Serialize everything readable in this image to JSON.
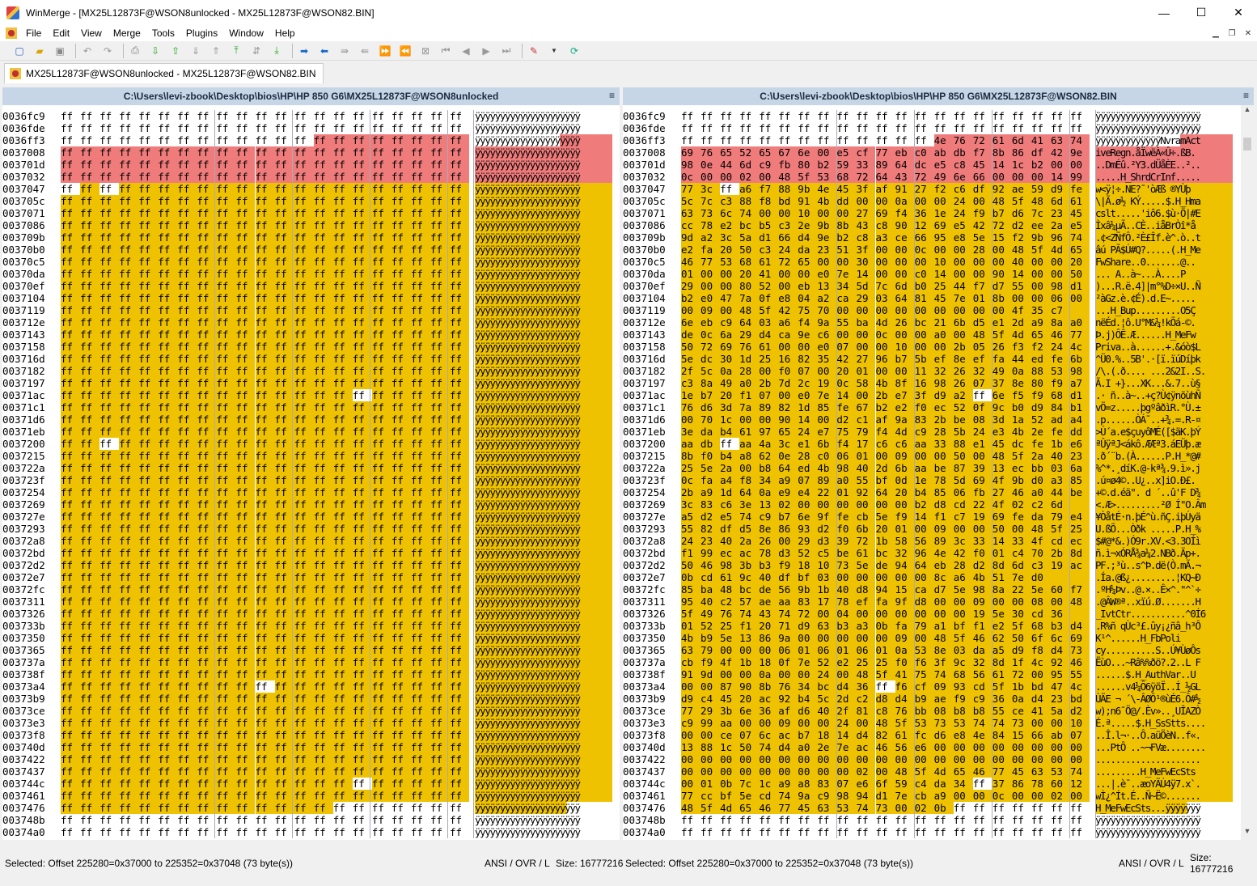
{
  "window": {
    "title": "WinMerge - [MX25L12873F@WSON8unlocked - MX25L12873F@WSON82.BIN]",
    "minimize": "—",
    "maximize": "☐",
    "close": "✕"
  },
  "menu": [
    "File",
    "Edit",
    "View",
    "Merge",
    "Tools",
    "Plugins",
    "Window",
    "Help"
  ],
  "tab": {
    "label": "MX25L12873F@WSON8unlocked - MX25L12873F@WSON82.BIN"
  },
  "left_pane": {
    "path": "C:\\Users\\levi-zbook\\Desktop\\bios\\HP\\HP 850 G6\\MX25L12873F@WSON8unlocked",
    "status_selection": "Selected: Offset 225280=0x37000 to 225352=0x37048 (73 byte(s))",
    "status_mode": "ANSI / OVR / L",
    "status_size": "Size: 16777216"
  },
  "right_pane": {
    "path": "C:\\Users\\levi-zbook\\Desktop\\bios\\HP\\HP 850 G6\\MX25L12873F@WSON82.BIN",
    "status_selection": "Selected: Offset 225280=0x37000 to 225352=0x37048 (73 byte(s))",
    "status_mode": "ANSI / OVR / L",
    "status_size": "Size: 16777216"
  },
  "addresses": [
    "0036fc9",
    "0036fde",
    "0036ff3",
    "0037008",
    "003701d",
    "0037032",
    "0037047",
    "003705c",
    "0037071",
    "0037086",
    "003709b",
    "00370b0",
    "00370c5",
    "00370da",
    "00370ef",
    "0037104",
    "0037119",
    "003712e",
    "0037143",
    "0037158",
    "003716d",
    "0037182",
    "0037197",
    "00371ac",
    "00371c1",
    "00371d6",
    "00371eb",
    "0037200",
    "0037215",
    "003722a",
    "003723f",
    "0037254",
    "0037269",
    "003727e",
    "0037293",
    "00372a8",
    "00372bd",
    "00372d2",
    "00372e7",
    "00372fc",
    "0037311",
    "0037326",
    "003733b",
    "0037350",
    "0037365",
    "003737a",
    "003738f",
    "00373a4",
    "00373b9",
    "00373ce",
    "00373e3",
    "00373f8",
    "003740d",
    "0037422",
    "0037437",
    "003744c",
    "0037461",
    "0037476",
    "003748b",
    "00374a0"
  ],
  "right_hex": [
    "ff ff ff ff ff ff ff ff ff ff ff ff ff ff ff ff ff ff ff ff ff",
    "ff ff ff ff ff ff ff ff ff ff ff ff ff ff ff ff ff ff ff ff ff",
    "ff ff ff ff ff ff ff ff ff ff ff ff ff 4e 76 72 61 6d 41 63 74",
    "69 76 65 52 65 67 6e 00 e5 cf 77 eb c0 ab db f7 8b 86 df 42 9e",
    "98 0e 44 6d c9 fb 80 b2 59 33 89 64 dc e5 c8 45 14 1c b2 00 00",
    "0c 00 00 02 00 48 5f 53 68 72 64 43 72 49 6e 66 00 00 00 14 99",
    "77 3c ff a6 f7 88 9b 4e 45 3f af 91 27 f2 c6 df 92 ae 59 d9 fe",
    "5c 7c c3 88 f8 bd 91 4b dd 00 00 0a 00 00 24 00 48 5f 48 6d 61",
    "63 73 6c 74 00 00 10 00 00 27 69 f4 36 1e 24 f9 b7 d6 7c 23 45",
    "cc 78 e2 bc b5 c3 2e 9b 8b 43 c8 90 12 69 e5 42 72 d2 ee 2a e5",
    "9d a2 3c 5a d1 66 d4 9e b2 c8 a3 ce 66 95 e8 5e 15 f2 9b 96 74",
    "e2 fa 20 50 c3 24 da 23 51 3f 00 00 0c 00 00 28 00 48 5f 4d 65",
    "46 77 53 68 61 72 65 00 00 30 00 00 00 10 00 00 00 40 00 00 20",
    "01 00 00 20 41 00 00 e0 7e 14 00 00 c0 14 00 00 90 14 00 00 50",
    "29 00 00 80 52 00 eb 13 34 5d 7c 6d b0 25 44 f7 d7 55 00 98 d1",
    "b2 e0 47 7a 0f e8 04 a2 ca 29 03 64 81 45 7e 01 8b 00 00 06 00",
    "00 09 00 48 5f 42 75 70 00 00 00 00 00 00 00 00 00 4f 35 c7",
    "6e eb c9 64 03 a6 f4 9a 55 ba 4d 26 bc 21 6b d5 e1 2d a9 8a a0",
    "de 0c 6a 29 d4 ca 9e c6 00 00 0c 00 00 a0 00 48 5f 4d 65 46 77",
    "50 72 69 76 61 00 00 e0 07 00 00 10 00 00 2b 05 26 f3 f2 24 4c",
    "5e dc 30 1d 25 16 82 35 42 27 96 b7 5b ef 8e ef fa 44 ed fe 6b",
    "2f 5c 0a 28 00 f0 07 00 20 01 00 00 11 32 26 32 49 0a 88 53 98",
    "c3 8a 49 a0 2b 7d 2c 19 0c 58 4b 8f 16 98 26 07 37 8e 80 f9 a7",
    "1e b7 20 f1 07 00 e0 7e 14 00 2b e7 3f d9 a2 ff 6e f5 f9 68 d1",
    "76 d6 3d 7a 89 82 1d 85 fe 67 b2 e2 f0 ec 52 0f 9c b0 d9 84 b1",
    "00 70 1c 00 00 90 14 00 d2 c1 af 9a 83 2b be 08 3d 1a 52 ad a4",
    "3e da b4 61 97 65 24 e7 75 79 f4 4d c9 28 5b 24 e3 4b 2e fe dd",
    "aa db ff aa 4a 3c e1 6b f4 17 c6 c6 aa 33 88 e1 45 dc fe 1b e6",
    "8b f0 b4 a8 62 0e 28 c0 06 01 00 09 00 00 50 00 48 5f 2a 40 23",
    "25 5e 2a 00 b8 64 ed 4b 98 40 2d 6b aa be 87 39 13 ec bb 03 6a",
    "0c fa a4 f8 34 a9 07 89 a0 55 bf 0d 1e 78 5d 69 4f 9b d0 a3 85",
    "2b a9 1d 64 0a e9 e4 22 01 92 64 20 b4 85 06 fb 27 46 a0 44 be",
    "3c 83 c6 3e 13 02 00 00 00 00 00 00 b2 d8 cd 22 4f 02 c2 6d",
    "a5 d2 e5 74 c9 b7 6e 9f fe cb 5e f9 14 f1 c7 19 69 fe da 79 e4",
    "55 82 df d5 8e 86 93 d2 f0 6b 20 01 00 09 00 00 50 00 48 5f 25",
    "24 23 40 2a 26 00 29 d3 39 72 1b 58 56 89 3c 33 14 33 4f cd ec",
    "f1 99 ec ac 78 d3 52 c5 be 61 bc 32 96 4e 42 f0 01 c4 70 2b 8d",
    "50 46 98 3b b3 f9 18 10 73 5e de 94 64 eb 28 d2 8d 6d c3 19 ac",
    "0b cd 61 9c 40 df bf 03 00 00 00 00 00 8c a6 4b 51 7e d0",
    "85 ba 48 bc de 56 9b 1b 40 d8 94 15 ca d7 5e 98 8a 22 5e 60 f7",
    "95 40 c2 57 ae aa 83 17 78 ef fa 9f d8 00 00 09 00 00 08 00 48",
    "5f 49 76 74 43 74 72 00 04 00 00 00 00 00 00 19 5e 30 cd 36",
    "01 52 25 f1 20 71 d9 63 b3 a3 0b fa 79 a1 bf f1 e2 5f 68 b3 d4",
    "4b b9 5e 13 86 9a 00 00 00 00 00 09 00 48 5f 46 62 50 6f 6c 69",
    "63 79 00 00 00 06 01 06 01 06 01 0a 53 8e 03 da a5 d9 f8 d4 73",
    "cb f9 4f 1b 18 0f 7e 52 e2 25 25 f0 f6 3f 9c 32 8d 1f 4c 92 46",
    "91 9d 00 00 0a 00 00 24 00 48 5f 41 75 74 68 56 61 72 00 95 55",
    "00 00 87 90 8b 76 34 bc d4 36 ff f6 cf 09 93 cd 5f 1b bd 47 4c",
    "d9 c4 45 20 ac 92 b4 5c 2d c2 d8 d4 b9 ae f9 c9 36 0a d4 23 bd",
    "77 29 3b 6e 36 af d6 40 2f 81 c8 76 bb 08 b8 b8 55 ce 41 5a d2",
    "c9 99 aa 00 00 09 00 00 24 00 48 5f 53 73 53 74 74 73 00 00 10",
    "00 00 ce 07 6c ac b7 18 14 d4 82 61 fc d6 e8 4e 84 15 66 ab 07",
    "13 88 1c 50 74 d4 a0 2e 7e ac 46 56 e6 00 00 00 00 00 00 00 00",
    "00 00 00 00 00 00 00 00 00 00 00 00 00 00 00 00 00 00 00 00 00",
    "00 00 00 00 00 00 00 00 00 02 00 48 5f 4d 65 46 77 45 63 53 74",
    "00 01 0b 7c 1c a9 a8 83 07 e6 6f 59 c4 da 34 ff 37 86 78 60 12",
    "77 cc bf 5e cd 74 9a c9 98 94 d1 7e cb a9 00 00 0c 00 00 02 00",
    "48 5f 4d 65 46 77 45 63 53 74 73 00 02 0b ff ff ff ff ff ff ff",
    "ff ff ff ff ff ff ff ff ff ff ff ff ff ff ff ff ff ff ff ff ff",
    "ff ff ff ff ff ff ff ff ff ff ff ff ff ff ff ff ff ff ff ff ff"
  ],
  "right_text": [
    "ÿÿÿÿÿÿÿÿÿÿÿÿÿÿÿÿÿÿÿÿÿ",
    "ÿÿÿÿÿÿÿÿÿÿÿÿÿÿÿÿÿÿÿÿÿ",
    "ÿÿÿÿÿÿÿÿÿÿÿÿÿNvramAct",
    "iveRegn.åÏwëÀ«Û÷.ßB.",
    "..DmÉû.²Y3.dÜåÈE..²..",
    ".....H_ShrdCrInf.....",
    "w<ÿ¦÷.NE?¯'òÆß ®YÙþ",
    "\\|Ã.ø½ KÝ.....$.H_Hma",
    "cslt.....'iô6.$ù·Ö|#E",
    "Ìxâ¼µÃ..CÈ..iåBrÒî*å",
    ".¢<ZÑfÔ.²È£Îf.è^.ò..t",
    "âú PÃ$Ú#Q?.....(.H_Me",
    "FwShare..0.......@..",
    "... A..à~...À....P",
    ")...R.ë.4]|m°%D÷×U..Ñ",
    "²àGz.è.¢É).d.E~.....",
    "...H_Bup.........O5Ç",
    "nëÉd.¦ô.U°M&¼!kÕá-©.",
    "Þ.j)ÔÊ.Æ......H_MeFw",
    "Priva..à......+.&óò$L",
    "^Ü0.%..5B'.·[ï.ïúDíþk",
    "/\\.(.ð.... ...2&2I..S.",
    "Ã.I +}...XK...&.7..ù§",
    ".· ñ..à~..+ç?Ù¢ÿnõùhÑ",
    "vÖ=z.....þgºâðìR.°Ù.±",
    ".p......ÒÁ¯..+¾.=.R-¤",
    ">Ú´a.e$çuyôMÉ([$äK.þÝ",
    "ªÛÿªJ<ákô.ÆÆª3.áEÜþ.æ",
    ".ð´¨b.(À......P.H_*@#",
    "%^*.¸díK.@-kª¾.9.ì».j",
    ".ú¤ø4©..U¿..x]iO.Ð£.",
    "+©.d.éä\". d ´..û'F D¾",
    "<.Æ>.........²Ø Í\"O.Âm",
    "¥ÒåtÉ·n.þÉ^ù.ñÇ.iþÚyä",
    "U.ßÕ...Òðk .....P.H_%",
    "$#@*&.)Ó9r.XV.<3.3OÍì",
    "ñ.ì¬xÓRÅ¾a¼2.NBð.Äp+.",
    "PF.;³ù..s^Þ.dë(Ò.mÃ.¬",
    ".Ía.@ß¿.........¦KQ~Ð",
    ".ºH¼Þv..@.×..Ê×^.\"^`÷",
    ".@ÂW®ª..xïú.Ø.......H",
    "_IvtCtr...........^0Í6",
    ".R%ñ qÙc³£.ûy¡¿ñâ_h³Ô",
    "K¹^......H_FbPoli",
    "cy..........S..Ú¥ÙøÔs",
    "ËùO...~Râ%%ðö?.2..L F",
    "......$.H_AuthVar..U",
    "......v4¼Ô6ÿöÏ..Í_½GL",
    "ÙÄE ¬ ´\\-ÂØÔ¹®ùÉ6.Ô#½",
    "w);n6¯Ö@/.Èv»..¸UÎAZÒ",
    "É.ª.....$.H_SsStts....",
    "..Î.l¬·..Ô.aüÖèN..f«.",
    "...PtÔ ..~¬FVæ........",
    ".....................",
    ".........H_MeFwEcSts",
    "...|.è¯..æoYÄÚ4ÿ7.x`.",
    "wÌ¿^Ít.É..Ñ~Ë©.......",
    "H_MeFwEcSts...ÿÿÿÿÿÿÿ",
    "ÿÿÿÿÿÿÿÿÿÿÿÿÿÿÿÿÿÿÿÿÿ",
    "ÿÿÿÿÿÿÿÿÿÿÿÿÿÿÿÿÿÿÿÿÿ"
  ],
  "colors": {
    "diff_red": "#ef7b7b",
    "diff_yellow": "#eec200",
    "header_blue": "#c7d6e6"
  },
  "icons": [
    "new-icon",
    "open-icon",
    "save-icon",
    "undo-icon",
    "redo-icon",
    "print-icon",
    "next-diff-icon",
    "prev-diff-icon",
    "first-diff-icon",
    "last-diff-icon",
    "copy-right-icon",
    "copy-left-icon",
    "options-icon",
    "refresh-icon"
  ]
}
